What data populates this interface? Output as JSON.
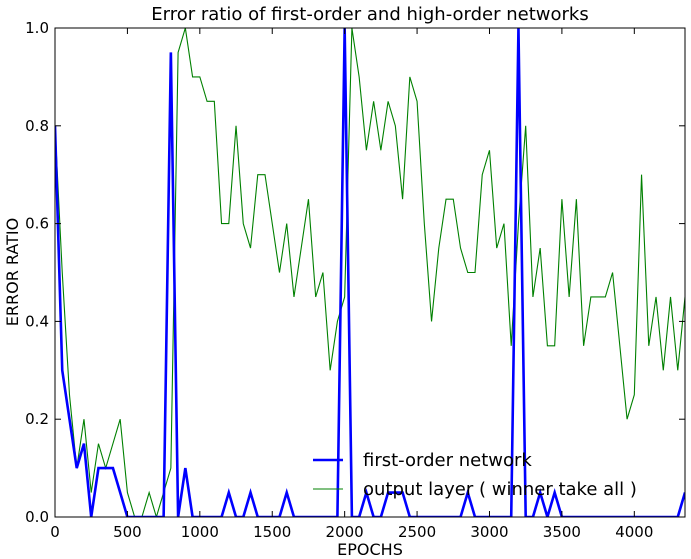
{
  "chart_data": {
    "type": "line",
    "title": "Error ratio of first-order and high-order networks",
    "xlabel": "EPOCHS",
    "ylabel": "ERROR RATIO",
    "xlim": [
      0,
      4350
    ],
    "ylim": [
      0,
      1.0
    ],
    "xticks": [
      0,
      500,
      1000,
      1500,
      2000,
      2500,
      3000,
      3500,
      4000
    ],
    "yticks": [
      0.0,
      0.2,
      0.4,
      0.6,
      0.8,
      1.0
    ],
    "xtick_labels": [
      "0",
      "500",
      "1000",
      "1500",
      "2000",
      "2500",
      "3000",
      "3500",
      "4000"
    ],
    "ytick_labels": [
      "0.0",
      "0.2",
      "0.4",
      "0.6",
      "0.8",
      "1.0"
    ],
    "grid": false,
    "legend_position": "bottom-right",
    "series": [
      {
        "name": "first-order network",
        "color": "#0000ff",
        "width": "thick",
        "x": [
          0,
          50,
          100,
          150,
          200,
          250,
          300,
          350,
          400,
          450,
          500,
          550,
          600,
          650,
          700,
          750,
          800,
          850,
          900,
          950,
          1000,
          1050,
          1100,
          1150,
          1200,
          1250,
          1300,
          1350,
          1400,
          1450,
          1500,
          1550,
          1600,
          1650,
          1700,
          1750,
          1800,
          1850,
          1900,
          1950,
          2000,
          2050,
          2100,
          2150,
          2200,
          2250,
          2300,
          2350,
          2400,
          2450,
          2500,
          2550,
          2600,
          2650,
          2700,
          2750,
          2800,
          2850,
          2900,
          2950,
          3000,
          3050,
          3100,
          3150,
          3200,
          3250,
          3300,
          3350,
          3400,
          3450,
          3500,
          3550,
          3600,
          3650,
          3700,
          3750,
          3800,
          3850,
          3900,
          3950,
          4000,
          4050,
          4100,
          4150,
          4200,
          4250,
          4300,
          4350
        ],
        "y": [
          0.8,
          0.3,
          0.2,
          0.1,
          0.15,
          0.0,
          0.1,
          0.1,
          0.1,
          0.05,
          0.0,
          0.0,
          0.0,
          0.0,
          0.0,
          0.0,
          0.95,
          0.0,
          0.1,
          0.0,
          0.0,
          0.0,
          0.0,
          0.0,
          0.05,
          0.0,
          0.0,
          0.05,
          0.0,
          0.0,
          0.0,
          0.0,
          0.05,
          0.0,
          0.0,
          0.0,
          0.0,
          0.0,
          0.0,
          0.0,
          1.0,
          0.0,
          0.0,
          0.05,
          0.0,
          0.0,
          0.05,
          0.05,
          0.05,
          0.0,
          0.0,
          0.0,
          0.0,
          0.0,
          0.0,
          0.0,
          0.0,
          0.05,
          0.0,
          0.0,
          0.0,
          0.0,
          0.0,
          0.0,
          1.0,
          0.0,
          0.0,
          0.05,
          0.0,
          0.05,
          0.0,
          0.0,
          0.0,
          0.0,
          0.0,
          0.0,
          0.0,
          0.0,
          0.0,
          0.0,
          0.0,
          0.0,
          0.0,
          0.0,
          0.0,
          0.0,
          0.0,
          0.05
        ]
      },
      {
        "name": "output layer ( winner take all )",
        "color": "#008000",
        "width": "thin",
        "x": [
          0,
          50,
          100,
          150,
          200,
          250,
          300,
          350,
          400,
          450,
          500,
          550,
          600,
          650,
          700,
          750,
          800,
          850,
          900,
          950,
          1000,
          1050,
          1100,
          1150,
          1200,
          1250,
          1300,
          1350,
          1400,
          1450,
          1500,
          1550,
          1600,
          1650,
          1700,
          1750,
          1800,
          1850,
          1900,
          1950,
          2000,
          2050,
          2100,
          2150,
          2200,
          2250,
          2300,
          2350,
          2400,
          2450,
          2500,
          2550,
          2600,
          2650,
          2700,
          2750,
          2800,
          2850,
          2900,
          2950,
          3000,
          3050,
          3100,
          3150,
          3200,
          3250,
          3300,
          3350,
          3400,
          3450,
          3500,
          3550,
          3600,
          3650,
          3700,
          3750,
          3800,
          3850,
          3900,
          3950,
          4000,
          4050,
          4100,
          4150,
          4200,
          4250,
          4300,
          4350
        ],
        "y": [
          0.8,
          0.5,
          0.25,
          0.1,
          0.2,
          0.05,
          0.15,
          0.1,
          0.15,
          0.2,
          0.05,
          0.0,
          0.0,
          0.05,
          0.0,
          0.05,
          0.1,
          0.95,
          1.0,
          0.9,
          0.9,
          0.85,
          0.85,
          0.6,
          0.6,
          0.8,
          0.6,
          0.55,
          0.7,
          0.7,
          0.6,
          0.5,
          0.6,
          0.45,
          0.55,
          0.65,
          0.45,
          0.5,
          0.3,
          0.4,
          0.45,
          1.0,
          0.9,
          0.75,
          0.85,
          0.75,
          0.85,
          0.8,
          0.65,
          0.9,
          0.85,
          0.6,
          0.4,
          0.55,
          0.65,
          0.65,
          0.55,
          0.5,
          0.5,
          0.7,
          0.75,
          0.55,
          0.6,
          0.35,
          0.6,
          0.8,
          0.45,
          0.55,
          0.35,
          0.35,
          0.65,
          0.45,
          0.65,
          0.35,
          0.45,
          0.45,
          0.45,
          0.5,
          0.35,
          0.2,
          0.25,
          0.7,
          0.35,
          0.45,
          0.3,
          0.45,
          0.3,
          0.45
        ]
      }
    ]
  }
}
